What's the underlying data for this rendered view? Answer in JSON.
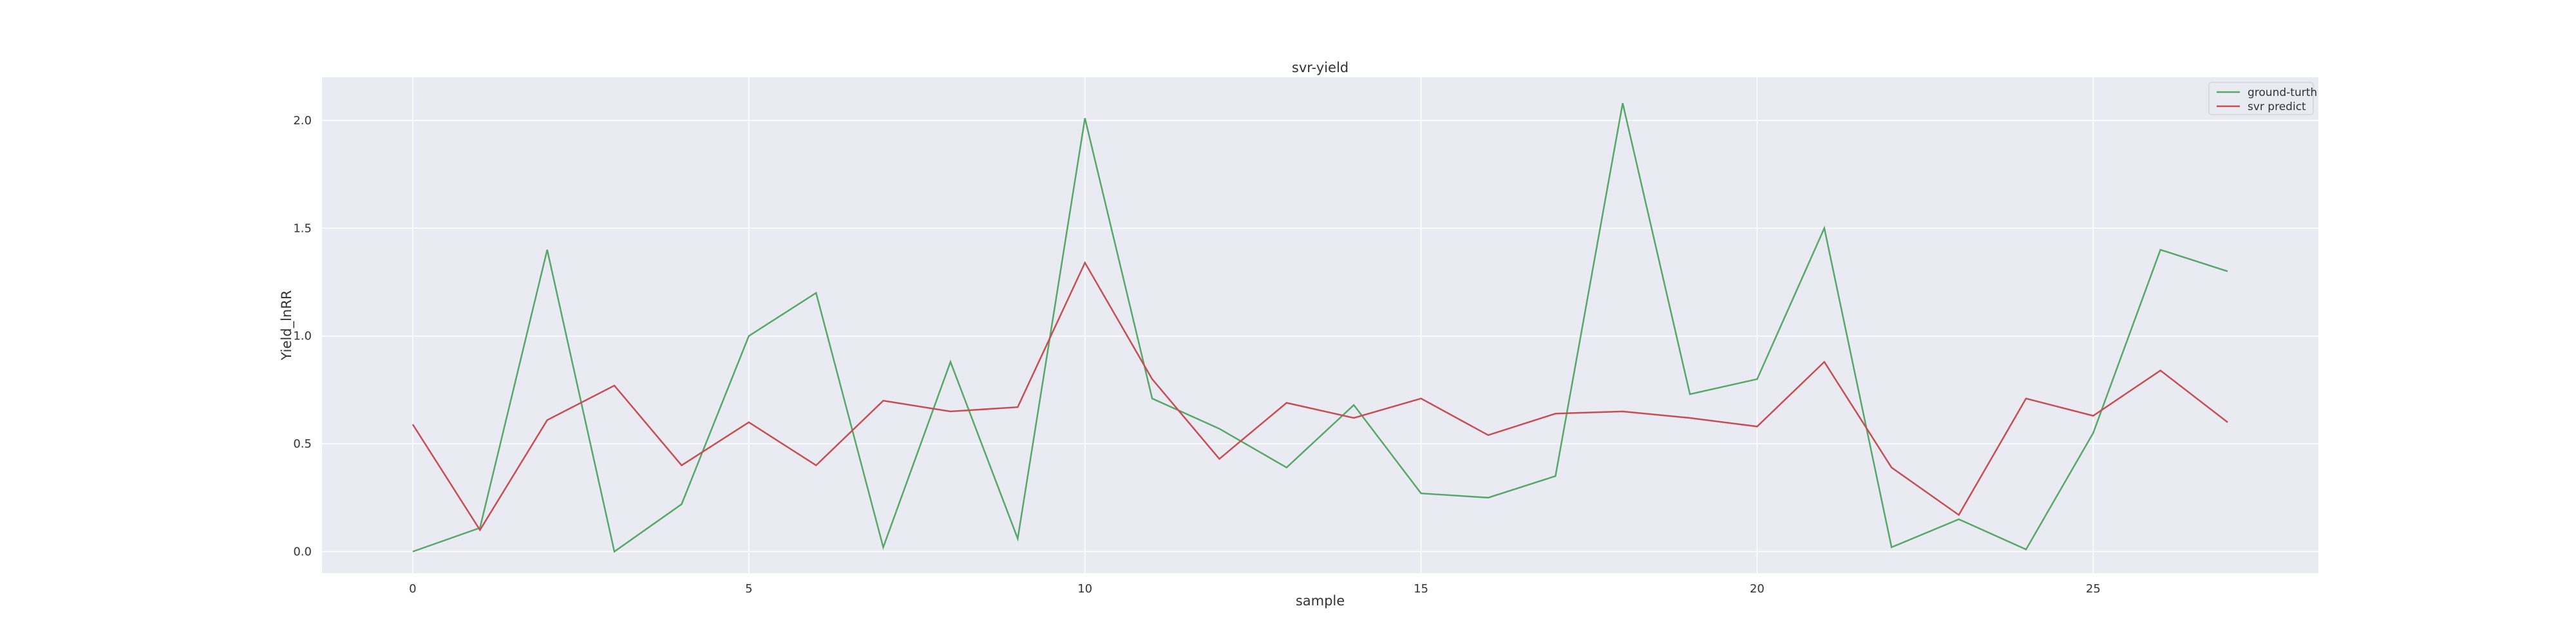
{
  "chart_data": {
    "type": "line",
    "title": "svr-yield",
    "xlabel": "sample",
    "ylabel": "Yield_lnRR",
    "xlim": [
      -1.35,
      28.35
    ],
    "ylim": [
      -0.1,
      2.2
    ],
    "xticks": [
      0,
      5,
      10,
      15,
      20,
      25
    ],
    "xtick_labels": [
      "0",
      "5",
      "10",
      "15",
      "20",
      "25"
    ],
    "yticks": [
      0.0,
      0.5,
      1.0,
      1.5,
      2.0
    ],
    "ytick_labels": [
      "0.0",
      "0.5",
      "1.0",
      "1.5",
      "2.0"
    ],
    "grid": true,
    "legend_position": "top-right",
    "x": [
      0,
      1,
      2,
      3,
      4,
      5,
      6,
      7,
      8,
      9,
      10,
      11,
      12,
      13,
      14,
      15,
      16,
      17,
      18,
      19,
      20,
      21,
      22,
      23,
      24,
      25,
      26,
      27
    ],
    "series": [
      {
        "name": "ground-turth",
        "color": "#55a868",
        "values": [
          0.0,
          0.11,
          1.4,
          0.0,
          0.22,
          1.0,
          1.2,
          0.02,
          0.88,
          0.06,
          2.01,
          0.71,
          0.57,
          0.39,
          0.68,
          0.27,
          0.25,
          0.35,
          2.08,
          0.73,
          0.8,
          1.5,
          0.02,
          0.15,
          0.01,
          0.55,
          1.4,
          1.3
        ]
      },
      {
        "name": "svr predict",
        "color": "#c44e52",
        "values": [
          0.59,
          0.1,
          0.61,
          0.77,
          0.4,
          0.6,
          0.4,
          0.7,
          0.65,
          0.67,
          1.34,
          0.8,
          0.43,
          0.69,
          0.62,
          0.71,
          0.54,
          0.64,
          0.65,
          0.62,
          0.58,
          0.88,
          0.39,
          0.17,
          0.71,
          0.63,
          0.84,
          0.6
        ]
      }
    ]
  },
  "colors": {
    "plot_background": "#eaeaf2",
    "grid": "#ffffff",
    "text": "#333333"
  }
}
